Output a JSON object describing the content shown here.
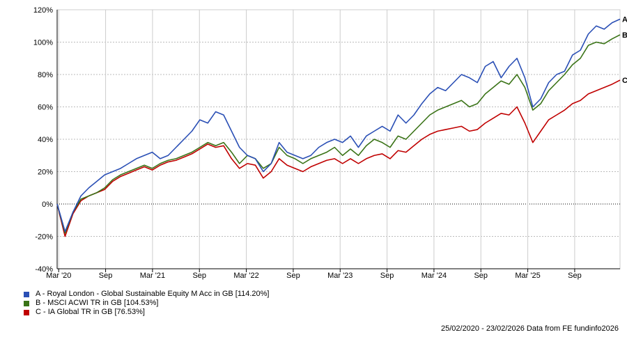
{
  "chart_data": {
    "type": "line",
    "title": "",
    "xlabel": "",
    "ylabel": "",
    "ylim": [
      -40,
      120
    ],
    "yticks": [
      "-40%",
      "-20%",
      "0%",
      "20%",
      "40%",
      "60%",
      "80%",
      "100%",
      "120%"
    ],
    "ytick_values": [
      -40,
      -20,
      0,
      20,
      40,
      60,
      80,
      100,
      120
    ],
    "xticks": [
      {
        "label": "Mar '20",
        "month": 0.2
      },
      {
        "label": "Sep",
        "month": 6.2
      },
      {
        "label": "Mar '21",
        "month": 12.2
      },
      {
        "label": "Sep",
        "month": 18.2
      },
      {
        "label": "Mar '22",
        "month": 24.2
      },
      {
        "label": "Sep",
        "month": 30.2
      },
      {
        "label": "Mar '23",
        "month": 36.2
      },
      {
        "label": "Sep",
        "month": 42.2
      },
      {
        "label": "Mar '24",
        "month": 48.2
      },
      {
        "label": "Sep",
        "month": 54.2
      },
      {
        "label": "Mar '25",
        "month": 60.2
      },
      {
        "label": "Sep",
        "month": 66.2
      }
    ],
    "xlim_months": [
      0,
      72
    ],
    "x_unit": "months since 25/02/2020",
    "grid": true,
    "series": [
      {
        "name": "A - Royal London - Global Sustainable Equity M Acc in GB [114.20%]",
        "tag": "A",
        "color": "#2a4fb5",
        "values": [
          0,
          -17,
          -5,
          5,
          10,
          14,
          18,
          20,
          22,
          25,
          28,
          30,
          32,
          28,
          30,
          35,
          40,
          45,
          52,
          50,
          57,
          55,
          45,
          35,
          30,
          28,
          20,
          25,
          38,
          32,
          30,
          28,
          30,
          35,
          38,
          40,
          38,
          42,
          35,
          42,
          45,
          48,
          45,
          55,
          50,
          55,
          62,
          68,
          72,
          70,
          75,
          80,
          78,
          75,
          85,
          88,
          78,
          85,
          90,
          78,
          60,
          65,
          75,
          80,
          82,
          92,
          95,
          105,
          110,
          108,
          112,
          114.2
        ]
      },
      {
        "name": "B - MSCI ACWI TR in GB [104.53%]",
        "tag": "B",
        "color": "#3a7317",
        "values": [
          0,
          -18,
          -5,
          3,
          5,
          7,
          10,
          15,
          18,
          20,
          22,
          24,
          22,
          25,
          27,
          28,
          30,
          32,
          35,
          38,
          36,
          38,
          32,
          25,
          30,
          28,
          22,
          25,
          35,
          30,
          28,
          25,
          28,
          30,
          32,
          35,
          30,
          34,
          30,
          36,
          40,
          38,
          35,
          42,
          40,
          45,
          50,
          55,
          58,
          60,
          62,
          64,
          60,
          62,
          68,
          72,
          76,
          74,
          80,
          72,
          58,
          62,
          70,
          75,
          80,
          86,
          90,
          98,
          100,
          99,
          102,
          104.53
        ]
      },
      {
        "name": "C - IA Global TR in GB [76.53%]",
        "tag": "C",
        "color": "#c00000",
        "values": [
          0,
          -20,
          -6,
          2,
          5,
          7,
          9,
          14,
          17,
          19,
          21,
          23,
          21,
          24,
          26,
          27,
          29,
          31,
          34,
          37,
          35,
          36,
          28,
          22,
          25,
          24,
          16,
          20,
          28,
          24,
          22,
          20,
          23,
          25,
          27,
          28,
          25,
          28,
          25,
          28,
          30,
          31,
          28,
          33,
          32,
          36,
          40,
          43,
          45,
          46,
          47,
          48,
          45,
          46,
          50,
          53,
          56,
          55,
          60,
          50,
          38,
          45,
          52,
          55,
          58,
          62,
          64,
          68,
          70,
          72,
          74,
          76.53
        ]
      }
    ]
  },
  "footer": "25/02/2020 - 23/02/2026 Data from FE fundinfo2026"
}
